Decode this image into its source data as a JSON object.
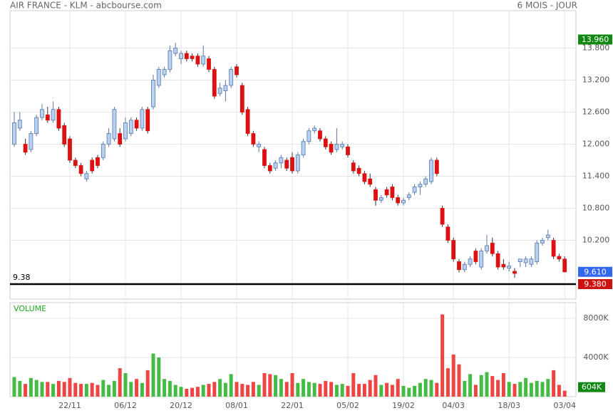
{
  "chart_data": {
    "type": "candlestick",
    "title": "AIR FRANCE - KLM - abcbourse.com",
    "period": "6 MOIS - JOUR",
    "volume_title": "VOLUME",
    "categories": [
      null,
      null,
      null,
      null,
      null,
      null,
      null,
      null,
      null,
      null,
      "22/11",
      null,
      null,
      null,
      null,
      null,
      null,
      null,
      null,
      null,
      "06/12",
      null,
      null,
      null,
      null,
      null,
      null,
      null,
      null,
      null,
      "20/12",
      null,
      null,
      null,
      null,
      null,
      null,
      null,
      null,
      null,
      "08/01",
      null,
      null,
      null,
      null,
      null,
      null,
      null,
      null,
      null,
      "22/01",
      null,
      null,
      null,
      null,
      null,
      null,
      null,
      null,
      null,
      "05/02",
      null,
      null,
      null,
      null,
      null,
      null,
      null,
      null,
      null,
      "19/02",
      null,
      null,
      null,
      null,
      null,
      null,
      null,
      null,
      "04/03",
      null,
      null,
      null,
      null,
      null,
      null,
      null,
      null,
      null,
      "18/03",
      null,
      null,
      null,
      null,
      null,
      null,
      null,
      null,
      null,
      "03/04"
    ],
    "candles": [
      [
        12.0,
        12.6,
        11.95,
        12.4
      ],
      [
        12.3,
        12.6,
        12.25,
        12.45
      ],
      [
        12.0,
        12.1,
        11.8,
        11.85
      ],
      [
        11.9,
        12.25,
        11.85,
        12.2
      ],
      [
        12.2,
        12.55,
        12.15,
        12.5
      ],
      [
        12.5,
        12.75,
        12.45,
        12.65
      ],
      [
        12.55,
        12.7,
        12.4,
        12.45
      ],
      [
        12.45,
        12.8,
        12.4,
        12.65
      ],
      [
        12.65,
        12.7,
        12.25,
        12.3
      ],
      [
        12.35,
        12.4,
        11.95,
        12.0
      ],
      [
        12.1,
        12.15,
        11.65,
        11.7
      ],
      [
        11.7,
        11.75,
        11.55,
        11.6
      ],
      [
        11.6,
        11.65,
        11.4,
        11.45
      ],
      [
        11.35,
        11.5,
        11.3,
        11.45
      ],
      [
        11.7,
        11.75,
        11.45,
        11.5
      ],
      [
        11.75,
        11.8,
        11.55,
        11.6
      ],
      [
        11.75,
        12.05,
        11.7,
        12.0
      ],
      [
        12.0,
        12.3,
        11.95,
        12.2
      ],
      [
        12.1,
        12.7,
        12.05,
        12.65
      ],
      [
        12.2,
        12.3,
        11.95,
        12.0
      ],
      [
        12.1,
        12.5,
        12.05,
        12.4
      ],
      [
        12.2,
        12.5,
        12.15,
        12.45
      ],
      [
        12.45,
        12.5,
        12.25,
        12.3
      ],
      [
        12.3,
        12.7,
        12.25,
        12.65
      ],
      [
        12.65,
        12.7,
        12.2,
        12.25
      ],
      [
        12.7,
        13.3,
        12.65,
        13.2
      ],
      [
        13.1,
        13.45,
        13.05,
        13.4
      ],
      [
        13.3,
        13.45,
        13.25,
        13.4
      ],
      [
        13.4,
        13.85,
        13.35,
        13.75
      ],
      [
        13.7,
        13.9,
        13.65,
        13.8
      ],
      [
        13.6,
        13.75,
        13.5,
        13.7
      ],
      [
        13.7,
        13.75,
        13.55,
        13.6
      ],
      [
        13.65,
        13.7,
        13.55,
        13.6
      ],
      [
        13.65,
        13.7,
        13.45,
        13.5
      ],
      [
        13.5,
        13.85,
        13.45,
        13.65
      ],
      [
        13.6,
        13.65,
        13.35,
        13.4
      ],
      [
        13.4,
        13.45,
        12.85,
        12.9
      ],
      [
        12.95,
        13.15,
        12.9,
        13.05
      ],
      [
        13.0,
        13.2,
        12.8,
        13.1
      ],
      [
        13.1,
        13.45,
        13.05,
        13.4
      ],
      [
        13.45,
        13.5,
        13.25,
        13.3
      ],
      [
        13.1,
        13.15,
        12.55,
        12.6
      ],
      [
        12.65,
        12.7,
        12.15,
        12.2
      ],
      [
        12.2,
        12.25,
        11.95,
        12.0
      ],
      [
        11.95,
        12.05,
        11.85,
        12.0
      ],
      [
        11.9,
        11.95,
        11.55,
        11.6
      ],
      [
        11.6,
        11.65,
        11.45,
        11.5
      ],
      [
        11.55,
        11.7,
        11.5,
        11.65
      ],
      [
        11.65,
        11.8,
        11.55,
        11.75
      ],
      [
        11.7,
        11.75,
        11.5,
        11.55
      ],
      [
        11.75,
        11.85,
        11.45,
        11.5
      ],
      [
        11.5,
        11.85,
        11.45,
        11.8
      ],
      [
        11.8,
        12.1,
        11.75,
        12.05
      ],
      [
        12.05,
        12.3,
        12.0,
        12.25
      ],
      [
        12.25,
        12.35,
        12.2,
        12.3
      ],
      [
        12.25,
        12.3,
        12.05,
        12.1
      ],
      [
        12.1,
        12.15,
        11.9,
        11.95
      ],
      [
        12.0,
        12.05,
        11.8,
        11.85
      ],
      [
        11.9,
        12.3,
        11.85,
        12.0
      ],
      [
        11.95,
        12.05,
        11.9,
        12.0
      ],
      [
        11.95,
        12.0,
        11.75,
        11.8
      ],
      [
        11.65,
        11.7,
        11.45,
        11.5
      ],
      [
        11.55,
        11.6,
        11.4,
        11.45
      ],
      [
        11.45,
        11.5,
        11.25,
        11.3
      ],
      [
        11.35,
        11.45,
        11.2,
        11.25
      ],
      [
        11.15,
        11.2,
        10.85,
        10.95
      ],
      [
        10.95,
        11.05,
        10.9,
        11.0
      ],
      [
        11.15,
        11.2,
        11.0,
        11.05
      ],
      [
        11.2,
        11.25,
        10.95,
        11.0
      ],
      [
        11.0,
        11.05,
        10.85,
        10.9
      ],
      [
        10.9,
        11.0,
        10.85,
        10.95
      ],
      [
        11.0,
        11.1,
        10.95,
        11.05
      ],
      [
        11.1,
        11.25,
        11.05,
        11.2
      ],
      [
        11.2,
        11.3,
        11.05,
        11.25
      ],
      [
        11.25,
        11.4,
        11.2,
        11.35
      ],
      [
        11.3,
        11.75,
        11.25,
        11.7
      ],
      [
        11.7,
        11.75,
        11.4,
        11.45
      ],
      [
        10.8,
        10.85,
        10.45,
        10.5
      ],
      [
        10.45,
        10.5,
        10.15,
        10.2
      ],
      [
        10.2,
        10.25,
        9.8,
        9.85
      ],
      [
        9.8,
        9.85,
        9.6,
        9.65
      ],
      [
        9.65,
        9.8,
        9.6,
        9.75
      ],
      [
        9.75,
        9.9,
        9.7,
        9.85
      ],
      [
        10.0,
        10.05,
        9.75,
        9.8
      ],
      [
        9.7,
        10.05,
        9.65,
        10.0
      ],
      [
        10.0,
        10.3,
        9.95,
        10.1
      ],
      [
        10.15,
        10.25,
        9.9,
        9.95
      ],
      [
        9.95,
        10.0,
        9.65,
        9.7
      ],
      [
        9.75,
        9.85,
        9.65,
        9.7
      ],
      [
        9.68,
        9.8,
        9.62,
        9.72
      ],
      [
        9.62,
        9.68,
        9.5,
        9.58
      ],
      [
        9.8,
        9.85,
        9.7,
        9.85
      ],
      [
        9.78,
        9.9,
        9.7,
        9.85
      ],
      [
        9.75,
        9.9,
        9.7,
        9.85
      ],
      [
        9.8,
        10.2,
        9.75,
        10.15
      ],
      [
        10.15,
        10.25,
        10.1,
        10.2
      ],
      [
        10.25,
        10.4,
        10.2,
        10.3
      ],
      [
        10.2,
        10.25,
        9.85,
        9.9
      ],
      [
        9.9,
        9.95,
        9.8,
        9.85
      ],
      [
        9.85,
        9.9,
        9.6,
        9.61
      ]
    ],
    "volume": [
      2000,
      1600,
      1300,
      1900,
      1700,
      1500,
      1500,
      1300,
      1600,
      1500,
      1900,
      1400,
      1300,
      1300,
      1400,
      1200,
      1700,
      1200,
      1600,
      2900,
      2400,
      1500,
      1800,
      1400,
      2700,
      4400,
      4000,
      1800,
      1600,
      1200,
      1000,
      800,
      900,
      1000,
      1200,
      1300,
      1500,
      1800,
      1400,
      2300,
      1500,
      1300,
      1200,
      1500,
      1200,
      2400,
      2300,
      2200,
      1800,
      1500,
      2400,
      1400,
      1800,
      1500,
      1400,
      1300,
      1600,
      1500,
      1200,
      1300,
      1100,
      2400,
      1300,
      1300,
      1700,
      2200,
      1200,
      1400,
      1200,
      1800,
      1100,
      900,
      1100,
      1400,
      1800,
      1700,
      1400,
      8400,
      2900,
      4300,
      3300,
      1600,
      2300,
      1200,
      2200,
      2500,
      2100,
      1700,
      2400,
      1500,
      1300,
      1500,
      1900,
      1400,
      1600,
      1500,
      1800,
      2700,
      1200,
      604
    ],
    "up_color": "#b9d1f1",
    "up_edge": "#5577aa",
    "down_color": "#dd1111",
    "volume_up_color": "#44bb44",
    "volume_down_color": "#ee4444",
    "ylim": [
      9.1,
      14.5
    ],
    "yticks": [
      {
        "value": 10.2,
        "label": "10.200"
      },
      {
        "value": 10.8,
        "label": "10.800"
      },
      {
        "value": 11.4,
        "label": "11.400"
      },
      {
        "value": 12.0,
        "label": "12.000"
      },
      {
        "value": 12.6,
        "label": "12.600"
      },
      {
        "value": 13.2,
        "label": "13.200"
      },
      {
        "value": 13.8,
        "label": "13.800"
      }
    ],
    "volume_ylim": [
      0,
      9600
    ],
    "volume_yticks": [
      {
        "value": 4000,
        "label": "4000K"
      },
      {
        "value": 8000,
        "label": "8000K"
      }
    ],
    "reference_line": {
      "value": 9.38,
      "label": "9.38"
    },
    "markers": [
      {
        "value": 13.96,
        "label": "13.960",
        "color": "#118811"
      },
      {
        "value": 9.61,
        "label": "9.610",
        "color": "#3366ee"
      },
      {
        "value": 9.38,
        "label": "9.380",
        "color": "#cc1111"
      }
    ],
    "volume_marker": {
      "value": 604,
      "label": "604K",
      "color": "#118811"
    },
    "grid": true
  }
}
